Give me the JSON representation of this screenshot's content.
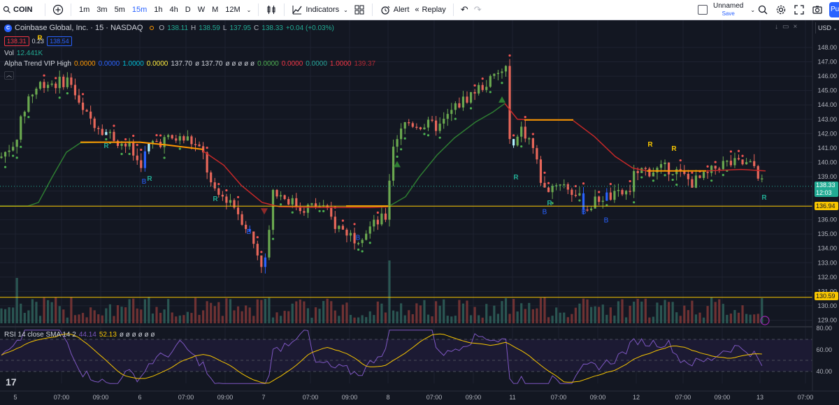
{
  "toolbar": {
    "symbol": "COIN",
    "timeframes": [
      {
        "label": "1m",
        "active": false
      },
      {
        "label": "3m",
        "active": false
      },
      {
        "label": "5m",
        "active": false
      },
      {
        "label": "15m",
        "active": true
      },
      {
        "label": "1h",
        "active": false
      },
      {
        "label": "4h",
        "active": false
      },
      {
        "label": "D",
        "active": false
      },
      {
        "label": "W",
        "active": false
      },
      {
        "label": "M",
        "active": false
      },
      {
        "label": "12M",
        "active": false
      }
    ],
    "indicators_label": "Indicators",
    "alert_label": "Alert",
    "replay_label": "Replay",
    "layout_name": "Unnamed",
    "layout_save": "Save",
    "publish_label": "Pu"
  },
  "legend": {
    "symbol_title": "Coinbase Global, Inc. · 15 · NASDAQ",
    "o_label": "O",
    "o_value": "138.11",
    "h_label": "H",
    "h_value": "138.59",
    "l_label": "L",
    "l_value": "137.95",
    "c_label": "C",
    "c_value": "138.33",
    "change": "+0.04 (+0.03%)",
    "bid": "138.31",
    "spread": "0.23",
    "ask": "138.54",
    "vol_label": "Vol",
    "vol_value": "12.441K",
    "alpha_label": "Alpha Trend VIP High",
    "alpha_values": [
      {
        "v": "0.0000",
        "color": "#ff9800"
      },
      {
        "v": "0.0000",
        "color": "#2962ff"
      },
      {
        "v": "1.0000",
        "color": "#00bcd4"
      },
      {
        "v": "0.0000",
        "color": "#ffeb3b"
      },
      {
        "v": "137.70",
        "color": "#d1d4dc"
      },
      {
        "v": "ø 137.70",
        "color": "#d1d4dc"
      },
      {
        "v": "ø ø ø ø ø",
        "color": "#d1d4dc"
      },
      {
        "v": "0.0000",
        "color": "#4caf50"
      },
      {
        "v": "0.0000",
        "color": "#f23645"
      },
      {
        "v": "0.0000",
        "color": "#26a69a"
      },
      {
        "v": "1.0000",
        "color": "#f23645"
      },
      {
        "v": "139.37",
        "color": "#b22833"
      }
    ],
    "rsi_label": "RSI 14 close SMA 14 2",
    "rsi_value": "44.14",
    "rsi_sma_value": "52.13",
    "rsi_rest": "ø ø ø ø ø ø"
  },
  "axis": {
    "currency": "USD",
    "price_ticks": [
      "148.00",
      "147.00",
      "146.00",
      "145.00",
      "144.00",
      "143.00",
      "142.00",
      "141.00",
      "140.00",
      "139.00",
      "138.00",
      "137.00",
      "136.00",
      "135.00",
      "134.00",
      "133.00",
      "132.00",
      "131.00",
      "130.00",
      "129.00"
    ],
    "rsi_ticks": [
      "80.00",
      "60.00",
      "40.00"
    ],
    "time_ticks": [
      "5",
      "07:00",
      "09:00",
      "6",
      "07:00",
      "09:00",
      "7",
      "07:00",
      "09:00",
      "8",
      "07:00",
      "09:00",
      "11",
      "07:00",
      "09:00",
      "12",
      "07:00",
      "09:00",
      "13",
      "07:00"
    ],
    "current_price": "138.33",
    "countdown": "12:03",
    "line_136": "136.94",
    "line_130": "130.59"
  },
  "colors": {
    "bg": "#131722",
    "up": "#6aa84f",
    "down": "#e8675a",
    "grid": "#1e2230",
    "yellow_line": "#f7c500",
    "blue_candle": "#2962ff",
    "cyan_candle": "#b2f2ff",
    "trend_green": "#2e7d32",
    "trend_orange": "#ff9800",
    "trend_red": "#c62828",
    "rsi_line": "#7e57c2",
    "rsi_sma": "#f7c500"
  },
  "labels": {
    "r": "R",
    "b": "B"
  }
}
